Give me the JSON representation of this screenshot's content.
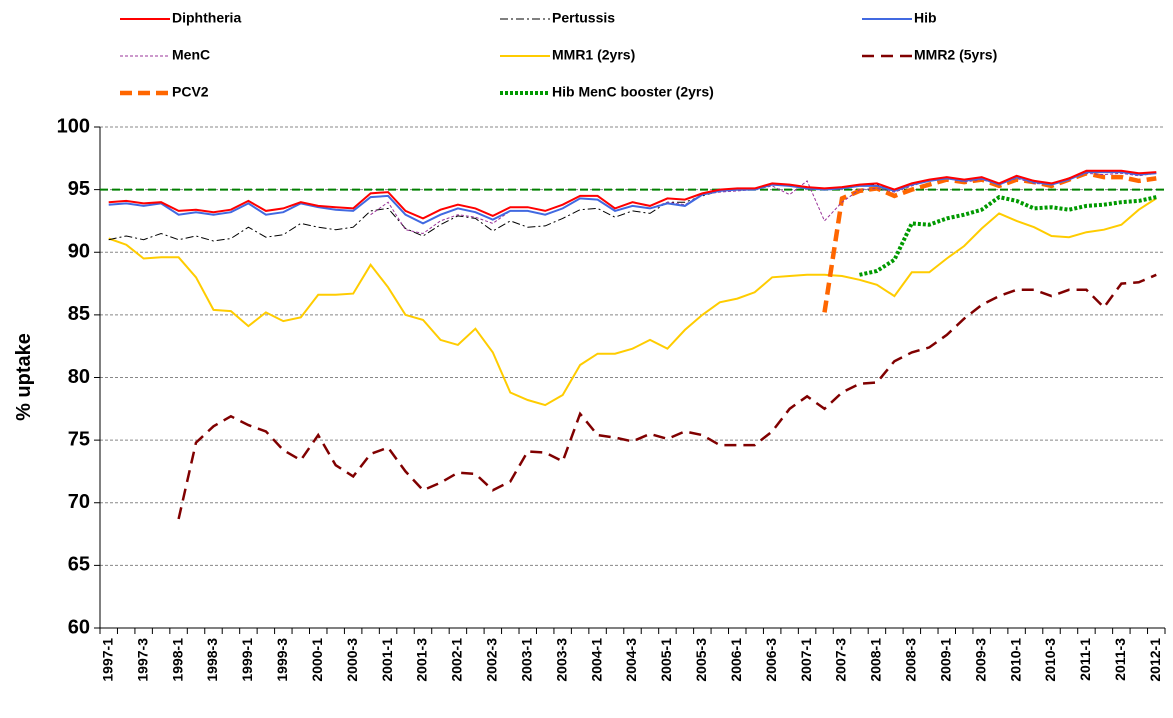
{
  "chart_data": {
    "type": "line",
    "y_label": "% uptake",
    "categories": [
      "1997-1",
      null,
      "1997-3",
      null,
      "1998-1",
      null,
      "1998-3",
      null,
      "1999-1",
      null,
      "1999-3",
      null,
      "2000-1",
      null,
      "2000-3",
      null,
      "2001-1",
      null,
      "2001-3",
      null,
      "2002-1",
      null,
      "2002-3",
      null,
      "2003-1",
      null,
      "2003-3",
      null,
      "2004-1",
      null,
      "2004-3",
      null,
      "2005-1",
      null,
      "2005-3",
      null,
      "2006-1",
      null,
      "2006-3",
      null,
      "2007-1",
      null,
      "2007-3",
      null,
      "2008-1",
      null,
      "2008-3",
      null,
      "2009-1",
      null,
      "2009-3",
      null,
      "2010-1",
      null,
      "2010-3",
      null,
      "2011-1",
      null,
      "2011-3",
      null,
      "2012-1"
    ],
    "ylim": [
      60,
      100
    ],
    "yticks": [
      60,
      65,
      70,
      75,
      80,
      85,
      90,
      95,
      100
    ],
    "grid": true,
    "reference_line": {
      "value": 95,
      "color": "#008000"
    },
    "series": [
      {
        "name": "Diphtheria",
        "color": "#ff0000",
        "values": [
          94.0,
          94.1,
          93.9,
          94.0,
          93.3,
          93.4,
          93.2,
          93.4,
          94.1,
          93.3,
          93.5,
          94.0,
          93.7,
          93.6,
          93.5,
          94.7,
          94.8,
          93.3,
          92.7,
          93.4,
          93.8,
          93.5,
          92.9,
          93.6,
          93.6,
          93.3,
          93.8,
          94.5,
          94.5,
          93.5,
          94.0,
          93.7,
          94.3,
          94.2,
          94.7,
          95.0,
          95.1,
          95.1,
          95.5,
          95.4,
          95.2,
          95.1,
          95.2,
          95.4,
          95.5,
          95.0,
          95.5,
          95.8,
          96.0,
          95.8,
          96.0,
          95.5,
          96.1,
          95.7,
          95.5,
          95.9,
          96.5,
          96.5,
          96.5,
          96.3,
          96.4
        ]
      },
      {
        "name": "Pertussis",
        "color": "#000000",
        "values": [
          91.0,
          91.3,
          91.0,
          91.5,
          91.0,
          91.3,
          90.9,
          91.1,
          92.0,
          91.2,
          91.4,
          92.3,
          92.0,
          91.8,
          92.0,
          93.3,
          93.5,
          91.9,
          91.3,
          92.2,
          92.9,
          92.7,
          91.7,
          92.5,
          92.0,
          92.1,
          92.7,
          93.4,
          93.5,
          92.8,
          93.3,
          93.1,
          94.0,
          94.0,
          94.5,
          94.9,
          95.1,
          95.1,
          95.4,
          95.3,
          95.1,
          95.0,
          95.2,
          95.3,
          95.4,
          95.0,
          95.4,
          95.7,
          95.9,
          95.7,
          95.9,
          95.4,
          96.0,
          95.6,
          95.4,
          95.8,
          96.4,
          96.4,
          96.4,
          96.2,
          96.3
        ]
      },
      {
        "name": "Hib",
        "color": "#4169e1",
        "values": [
          93.8,
          93.9,
          93.7,
          93.9,
          93.0,
          93.2,
          93.0,
          93.2,
          93.9,
          93.0,
          93.2,
          93.9,
          93.6,
          93.4,
          93.3,
          94.4,
          94.5,
          93.0,
          92.3,
          93.0,
          93.5,
          93.2,
          92.6,
          93.3,
          93.3,
          93.0,
          93.5,
          94.3,
          94.2,
          93.3,
          93.7,
          93.5,
          93.9,
          93.7,
          94.6,
          94.9,
          95.0,
          95.0,
          95.4,
          95.3,
          95.1,
          95.0,
          95.1,
          95.3,
          95.3,
          94.9,
          95.4,
          95.7,
          95.9,
          95.7,
          95.9,
          95.4,
          96.0,
          95.6,
          95.4,
          95.8,
          96.4,
          96.4,
          96.4,
          96.2,
          96.3
        ]
      },
      {
        "name": "MenC",
        "color": "#993399",
        "values": [
          null,
          null,
          null,
          null,
          null,
          null,
          null,
          null,
          null,
          null,
          null,
          null,
          null,
          null,
          null,
          93.0,
          94.0,
          91.8,
          91.5,
          92.5,
          93.0,
          92.8,
          92.3,
          93.3,
          93.3,
          93.0,
          93.5,
          94.3,
          94.2,
          93.3,
          93.7,
          93.5,
          94.0,
          93.8,
          94.6,
          94.8,
          94.9,
          95.0,
          95.3,
          94.6,
          95.7,
          92.5,
          94.0,
          95.0,
          95.1,
          94.8,
          95.3,
          95.7,
          95.9,
          95.6,
          95.8,
          95.4,
          95.9,
          95.5,
          95.4,
          95.8,
          96.3,
          96.2,
          96.3,
          96.1,
          96.3
        ]
      },
      {
        "name": "MMR1 (2yrs)",
        "color": "#ffcc00",
        "values": [
          91.1,
          90.6,
          89.5,
          89.6,
          89.6,
          88.0,
          85.4,
          85.3,
          84.1,
          85.2,
          84.5,
          84.8,
          86.6,
          86.6,
          86.7,
          89.0,
          87.2,
          85.0,
          84.6,
          83.0,
          82.6,
          83.9,
          82.0,
          78.8,
          78.2,
          77.8,
          78.6,
          81.0,
          81.9,
          81.9,
          82.3,
          83.0,
          82.3,
          83.8,
          85.0,
          86.0,
          86.3,
          86.8,
          88.0,
          88.1,
          88.2,
          88.2,
          88.1,
          87.8,
          87.4,
          86.5,
          88.4,
          88.4,
          89.5,
          90.5,
          91.9,
          93.1,
          92.5,
          92.0,
          91.3,
          91.2,
          91.6,
          91.8,
          92.2,
          93.4,
          94.3
        ]
      },
      {
        "name": "MMR2 (5yrs)",
        "color": "#800000",
        "values": [
          null,
          null,
          null,
          null,
          68.7,
          74.8,
          76.1,
          76.9,
          76.2,
          75.7,
          74.2,
          73.4,
          75.4,
          73.0,
          72.1,
          73.9,
          74.4,
          72.5,
          71.0,
          71.6,
          72.4,
          72.3,
          71.0,
          71.7,
          74.1,
          74.0,
          73.3,
          77.1,
          75.4,
          75.2,
          74.9,
          75.5,
          75.1,
          75.7,
          75.4,
          74.6,
          74.6,
          74.6,
          75.7,
          77.5,
          78.5,
          77.5,
          78.8,
          79.5,
          79.6,
          81.3,
          82.0,
          82.4,
          83.4,
          84.7,
          85.8,
          86.5,
          87.0,
          87.0,
          86.5,
          87.0,
          87.0,
          85.6,
          87.5,
          87.6,
          88.2
        ]
      },
      {
        "name": "PCV2",
        "color": "#ff6600",
        "values": [
          null,
          null,
          null,
          null,
          null,
          null,
          null,
          null,
          null,
          null,
          null,
          null,
          null,
          null,
          null,
          null,
          null,
          null,
          null,
          null,
          null,
          null,
          null,
          null,
          null,
          null,
          null,
          null,
          null,
          null,
          null,
          null,
          null,
          null,
          null,
          null,
          null,
          null,
          null,
          null,
          null,
          85.2,
          94.3,
          94.9,
          95.1,
          94.5,
          95.0,
          95.4,
          95.8,
          95.6,
          95.8,
          95.3,
          95.8,
          95.6,
          95.3,
          95.8,
          96.3,
          96.0,
          96.0,
          95.7,
          95.9
        ]
      },
      {
        "name": "Hib MenC booster (2yrs)",
        "color": "#009900",
        "values": [
          null,
          null,
          null,
          null,
          null,
          null,
          null,
          null,
          null,
          null,
          null,
          null,
          null,
          null,
          null,
          null,
          null,
          null,
          null,
          null,
          null,
          null,
          null,
          null,
          null,
          null,
          null,
          null,
          null,
          null,
          null,
          null,
          null,
          null,
          null,
          null,
          null,
          null,
          null,
          null,
          null,
          null,
          null,
          88.2,
          88.5,
          89.4,
          92.3,
          92.2,
          92.7,
          93.0,
          93.4,
          94.4,
          94.1,
          93.5,
          93.6,
          93.4,
          93.7,
          93.8,
          94.0,
          94.1,
          94.4
        ]
      }
    ]
  }
}
